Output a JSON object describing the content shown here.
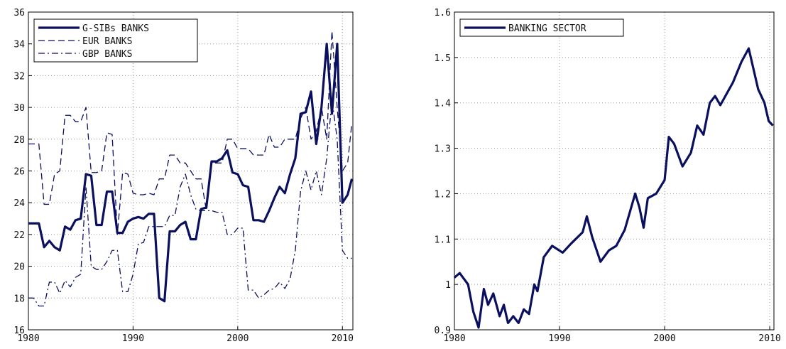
{
  "chart_data": [
    {
      "type": "line",
      "x": [
        1980,
        1980.5,
        1981,
        1981.5,
        1982,
        1982.5,
        1983,
        1983.5,
        1984,
        1984.5,
        1985,
        1985.5,
        1986,
        1986.5,
        1987,
        1987.5,
        1988,
        1988.5,
        1989,
        1989.5,
        1990,
        1990.5,
        1991,
        1991.5,
        1992,
        1992.5,
        1993,
        1993.5,
        1994,
        1994.5,
        1995,
        1995.5,
        1996,
        1996.5,
        1997,
        1997.5,
        1998,
        1998.5,
        1999,
        1999.5,
        2000,
        2000.5,
        2001,
        2001.5,
        2002,
        2002.5,
        2003,
        2003.5,
        2004,
        2004.5,
        2005,
        2005.5,
        2006,
        2006.5,
        2007,
        2007.5,
        2008,
        2008.5,
        2009,
        2009.5,
        2010,
        2010.5,
        2010.9
      ],
      "series": [
        {
          "name": "G-SIBs BANKS",
          "color": "#0a0f5e",
          "linestyle": "solid",
          "values": [
            22.7,
            22.7,
            22.7,
            21.2,
            21.6,
            21.2,
            21.0,
            22.5,
            22.3,
            22.9,
            23.0,
            25.8,
            25.7,
            22.6,
            22.6,
            24.7,
            24.7,
            22.1,
            22.1,
            22.8,
            23.0,
            23.1,
            23.0,
            23.3,
            23.3,
            18.0,
            17.8,
            22.2,
            22.2,
            22.6,
            22.8,
            21.7,
            21.7,
            23.6,
            23.7,
            26.6,
            26.6,
            26.8,
            27.3,
            25.9,
            25.8,
            25.1,
            25.0,
            22.9,
            22.9,
            22.8,
            23.5,
            24.3,
            25.0,
            24.6,
            25.8,
            26.8,
            29.6,
            29.7,
            31.0,
            27.7,
            30.0,
            34.0,
            29.6,
            34.0,
            24.0,
            24.5,
            25.5
          ]
        },
        {
          "name": "EUR BANKS",
          "color": "#0a0f5e",
          "linestyle": "dashed",
          "values": [
            27.7,
            27.7,
            27.7,
            23.9,
            23.9,
            25.8,
            26.0,
            29.5,
            29.5,
            29.1,
            29.1,
            30.0,
            25.9,
            25.9,
            26.0,
            28.4,
            28.3,
            22.0,
            25.9,
            25.8,
            24.6,
            24.5,
            24.5,
            24.6,
            24.5,
            25.5,
            25.5,
            27.0,
            27.0,
            26.5,
            26.5,
            26.0,
            25.5,
            25.5,
            23.5,
            26.5,
            26.5,
            26.5,
            28.0,
            28.0,
            27.4,
            27.4,
            27.4,
            27.0,
            27.0,
            27.0,
            28.3,
            27.5,
            27.5,
            28.0,
            28.0,
            28.0,
            29.3,
            30.0,
            28.0,
            28.5,
            30.0,
            28.0,
            34.8,
            30.0,
            26.0,
            26.5,
            29.0
          ]
        },
        {
          "name": "GBP BANKS",
          "color": "#0a0f5e",
          "linestyle": "dashdot",
          "values": [
            18.0,
            18.0,
            17.5,
            17.5,
            19.0,
            19.0,
            18.3,
            19.1,
            18.7,
            19.3,
            19.5,
            25.0,
            20.0,
            19.8,
            19.8,
            20.3,
            21.0,
            21.0,
            18.4,
            18.4,
            19.5,
            21.4,
            21.5,
            22.5,
            22.5,
            22.5,
            22.5,
            23.2,
            23.2,
            25.0,
            25.8,
            24.5,
            23.6,
            23.5,
            23.5,
            23.5,
            23.4,
            23.4,
            22.0,
            22.0,
            22.4,
            22.4,
            18.5,
            18.5,
            18.0,
            18.2,
            18.5,
            18.6,
            19.0,
            18.6,
            19.2,
            21.0,
            24.7,
            26.0,
            24.8,
            26.0,
            24.5,
            26.8,
            30.5,
            28.0,
            21.0,
            20.5,
            20.5
          ]
        }
      ],
      "xlim": [
        1980,
        2011
      ],
      "xticks": [
        1980,
        1990,
        2000,
        2010
      ],
      "ylim": [
        16,
        36
      ],
      "yticks": [
        16,
        18,
        20,
        22,
        24,
        26,
        28,
        30,
        32,
        34,
        36
      ],
      "grid": true,
      "legend": "upper left"
    },
    {
      "type": "line",
      "x": [
        1980,
        1980.5,
        1981.3,
        1981.8,
        1982.3,
        1982.8,
        1983.2,
        1983.7,
        1984.3,
        1984.7,
        1985.1,
        1985.6,
        1986.1,
        1986.6,
        1987.1,
        1987.6,
        1987.9,
        1988.5,
        1989.3,
        1990.3,
        1991.1,
        1992.2,
        1992.6,
        1993.1,
        1993.9,
        1994.7,
        1995.4,
        1996.2,
        1996.7,
        1997.2,
        1997.6,
        1998.0,
        1998.4,
        1999.2,
        2000,
        2000.4,
        2000.9,
        2001.7,
        2002.5,
        2003.1,
        2003.7,
        2004.3,
        2004.8,
        2005.3,
        2005.9,
        2006.5,
        2007.3,
        2008.0,
        2008.4,
        2008.9,
        2009.5,
        2009.9,
        2010.3
      ],
      "series": [
        {
          "name": "BANKING SECTOR",
          "color": "#0a0f5e",
          "linestyle": "solid",
          "values": [
            1.015,
            1.025,
            1.0,
            0.94,
            0.905,
            0.99,
            0.955,
            0.98,
            0.93,
            0.955,
            0.915,
            0.93,
            0.915,
            0.945,
            0.935,
            1.0,
            0.985,
            1.06,
            1.085,
            1.07,
            1.09,
            1.115,
            1.15,
            1.105,
            1.05,
            1.075,
            1.085,
            1.12,
            1.16,
            1.2,
            1.17,
            1.125,
            1.19,
            1.2,
            1.23,
            1.325,
            1.31,
            1.26,
            1.29,
            1.35,
            1.33,
            1.4,
            1.415,
            1.395,
            1.42,
            1.445,
            1.49,
            1.52,
            1.48,
            1.43,
            1.4,
            1.36,
            1.35
          ]
        }
      ],
      "xlim": [
        1980,
        2010.4
      ],
      "xticks": [
        1980,
        1990,
        2000,
        2010
      ],
      "ylim": [
        0.9,
        1.6
      ],
      "yticks": [
        0.9,
        1,
        1.1,
        1.2,
        1.3,
        1.4,
        1.5,
        1.6
      ],
      "grid": true,
      "legend": "upper left"
    }
  ]
}
